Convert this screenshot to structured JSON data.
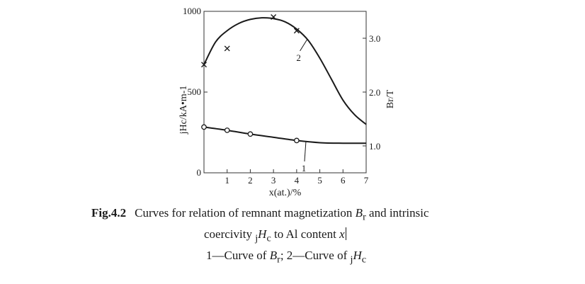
{
  "chart_data": {
    "type": "line",
    "xlabel": "x(at.)/%",
    "ylabel_left": "jHc/kA•m-1",
    "ylabel_right": "Br/T",
    "xlim": [
      0,
      7
    ],
    "ylim_left": [
      0,
      1000
    ],
    "ylim_right": [
      0.5,
      3.5
    ],
    "x_ticks": [
      "1",
      "2",
      "3",
      "4",
      "5",
      "6",
      "7"
    ],
    "y_left_ticks": [
      "0",
      "500",
      "1000"
    ],
    "y_right_ticks": [
      "1.0",
      "2.0",
      "3.0"
    ],
    "series": [
      {
        "name": "1",
        "axis": "right",
        "marker": "circle",
        "curve_x": [
          0,
          1,
          2,
          3,
          4,
          5,
          6,
          7
        ],
        "curve_y": [
          1.35,
          1.29,
          1.22,
          1.16,
          1.1,
          1.06,
          1.05,
          1.05
        ],
        "points_x": [
          0,
          1,
          2,
          4
        ],
        "points_y": [
          1.35,
          1.29,
          1.22,
          1.1
        ]
      },
      {
        "name": "2",
        "axis": "left",
        "marker": "x",
        "curve_x": [
          0,
          0.5,
          1,
          1.5,
          2,
          2.5,
          3,
          3.5,
          4,
          4.5,
          5,
          5.5,
          6,
          6.5,
          7
        ],
        "curve_y": [
          670,
          810,
          880,
          925,
          950,
          960,
          955,
          935,
          890,
          820,
          710,
          580,
          450,
          360,
          300
        ],
        "points_x": [
          0,
          1,
          3,
          4
        ],
        "points_y": [
          670,
          770,
          965,
          880
        ]
      }
    ]
  },
  "caption": {
    "fig_num": "Fig.4.2",
    "line1_a": "Curves for relation of remnant magnetization ",
    "line1_var": "B",
    "line1_sub": "r",
    "line1_b": " and intrinsic",
    "line2_a": "coercivity ",
    "line2_pre": "j",
    "line2_var": "H",
    "line2_sub": "c",
    "line2_b": " to Al content ",
    "line2_x": "x",
    "line3_a": "1—Curve of ",
    "line3_var1": "B",
    "line3_sub1": "r",
    "line3_mid": "; 2—Curve of ",
    "line3_pre": "j",
    "line3_var2": "H",
    "line3_sub2": "c"
  }
}
